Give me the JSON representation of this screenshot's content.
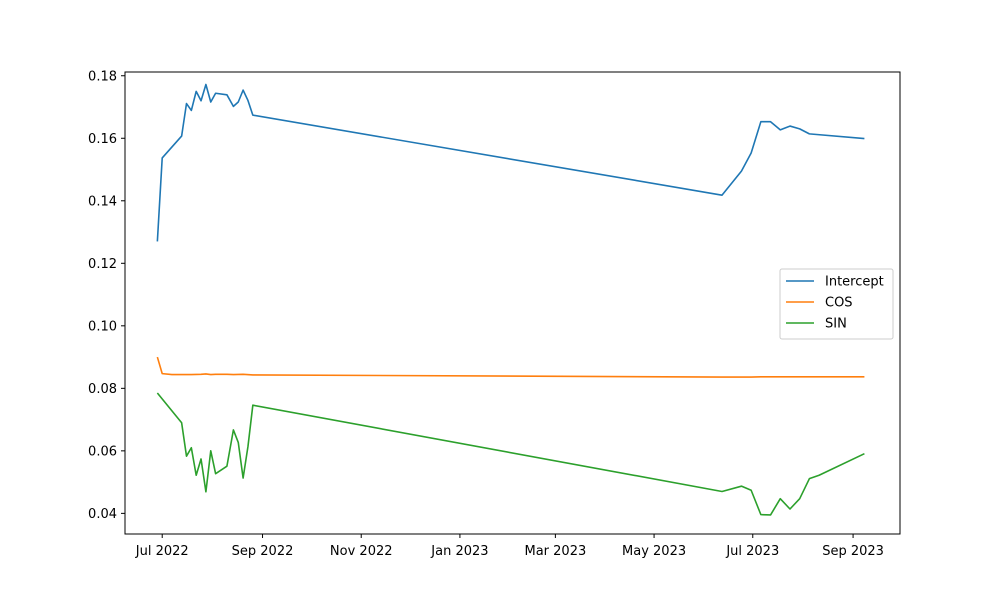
{
  "chart_data": {
    "type": "line",
    "title": "",
    "xlabel": "",
    "ylabel": "",
    "xlim": [
      "2022-06-08",
      "2023-09-30"
    ],
    "ylim": [
      0.0334,
      0.1812
    ],
    "x_ticks": [
      {
        "date": "2022-07-01",
        "label": "Jul 2022"
      },
      {
        "date": "2022-09-01",
        "label": "Sep 2022"
      },
      {
        "date": "2022-11-01",
        "label": "Nov 2022"
      },
      {
        "date": "2023-01-01",
        "label": "Jan 2023"
      },
      {
        "date": "2023-03-01",
        "label": "Mar 2023"
      },
      {
        "date": "2023-05-01",
        "label": "May 2023"
      },
      {
        "date": "2023-07-01",
        "label": "Jul 2023"
      },
      {
        "date": "2023-09-01",
        "label": "Sep 2023"
      }
    ],
    "y_ticks": [
      {
        "value": 0.04,
        "label": "0.04"
      },
      {
        "value": 0.06,
        "label": "0.06"
      },
      {
        "value": 0.08,
        "label": "0.08"
      },
      {
        "value": 0.1,
        "label": "0.10"
      },
      {
        "value": 0.12,
        "label": "0.12"
      },
      {
        "value": 0.14,
        "label": "0.14"
      },
      {
        "value": 0.16,
        "label": "0.16"
      },
      {
        "value": 0.18,
        "label": "0.18"
      }
    ],
    "grid": false,
    "legend_position": "center-right",
    "series": [
      {
        "name": "Intercept",
        "color": "#1f77b4",
        "points": [
          [
            "2022-06-28",
            0.127
          ],
          [
            "2022-07-01",
            0.1537
          ],
          [
            "2022-07-13",
            0.1607
          ],
          [
            "2022-07-16",
            0.1711
          ],
          [
            "2022-07-19",
            0.1689
          ],
          [
            "2022-07-22",
            0.175
          ],
          [
            "2022-07-25",
            0.172
          ],
          [
            "2022-07-28",
            0.1772
          ],
          [
            "2022-07-31",
            0.1716
          ],
          [
            "2022-08-03",
            0.1744
          ],
          [
            "2022-08-10",
            0.1739
          ],
          [
            "2022-08-14",
            0.1702
          ],
          [
            "2022-08-17",
            0.1716
          ],
          [
            "2022-08-20",
            0.1754
          ],
          [
            "2022-08-23",
            0.1721
          ],
          [
            "2022-08-26",
            0.1674
          ],
          [
            "2023-06-12",
            0.1418
          ],
          [
            "2023-06-24",
            0.1495
          ],
          [
            "2023-06-30",
            0.1553
          ],
          [
            "2023-07-06",
            0.1653
          ],
          [
            "2023-07-12",
            0.1653
          ],
          [
            "2023-07-18",
            0.1627
          ],
          [
            "2023-07-24",
            0.1639
          ],
          [
            "2023-07-30",
            0.163
          ],
          [
            "2023-08-05",
            0.1614
          ],
          [
            "2023-09-08",
            0.1599
          ]
        ]
      },
      {
        "name": "COS",
        "color": "#ff7f0e",
        "points": [
          [
            "2022-06-28",
            0.09
          ],
          [
            "2022-07-01",
            0.0847
          ],
          [
            "2022-07-07",
            0.0844
          ],
          [
            "2022-07-13",
            0.0844
          ],
          [
            "2022-07-19",
            0.0844
          ],
          [
            "2022-07-25",
            0.0845
          ],
          [
            "2022-07-28",
            0.0846
          ],
          [
            "2022-07-31",
            0.0844
          ],
          [
            "2022-08-03",
            0.0845
          ],
          [
            "2022-08-10",
            0.0845
          ],
          [
            "2022-08-14",
            0.0844
          ],
          [
            "2022-08-20",
            0.0845
          ],
          [
            "2022-08-26",
            0.0843
          ],
          [
            "2023-06-12",
            0.0836
          ],
          [
            "2023-06-30",
            0.0836
          ],
          [
            "2023-07-06",
            0.0837
          ],
          [
            "2023-07-18",
            0.0837
          ],
          [
            "2023-08-05",
            0.0837
          ],
          [
            "2023-09-08",
            0.0837
          ]
        ]
      },
      {
        "name": "SIN",
        "color": "#2ca02c",
        "points": [
          [
            "2022-06-28",
            0.0785
          ],
          [
            "2022-07-13",
            0.069
          ],
          [
            "2022-07-16",
            0.0583
          ],
          [
            "2022-07-19",
            0.061
          ],
          [
            "2022-07-22",
            0.0522
          ],
          [
            "2022-07-25",
            0.0574
          ],
          [
            "2022-07-28",
            0.0469
          ],
          [
            "2022-07-31",
            0.06
          ],
          [
            "2022-08-03",
            0.0527
          ],
          [
            "2022-08-10",
            0.0551
          ],
          [
            "2022-08-14",
            0.0667
          ],
          [
            "2022-08-17",
            0.0627
          ],
          [
            "2022-08-20",
            0.0513
          ],
          [
            "2022-08-23",
            0.0614
          ],
          [
            "2022-08-26",
            0.0746
          ],
          [
            "2023-06-12",
            0.047
          ],
          [
            "2023-06-24",
            0.0487
          ],
          [
            "2023-06-30",
            0.0474
          ],
          [
            "2023-07-06",
            0.0396
          ],
          [
            "2023-07-12",
            0.0395
          ],
          [
            "2023-07-18",
            0.0447
          ],
          [
            "2023-07-24",
            0.0414
          ],
          [
            "2023-07-30",
            0.0447
          ],
          [
            "2023-08-05",
            0.0511
          ],
          [
            "2023-08-11",
            0.0522
          ],
          [
            "2023-09-08",
            0.0591
          ]
        ]
      }
    ]
  }
}
